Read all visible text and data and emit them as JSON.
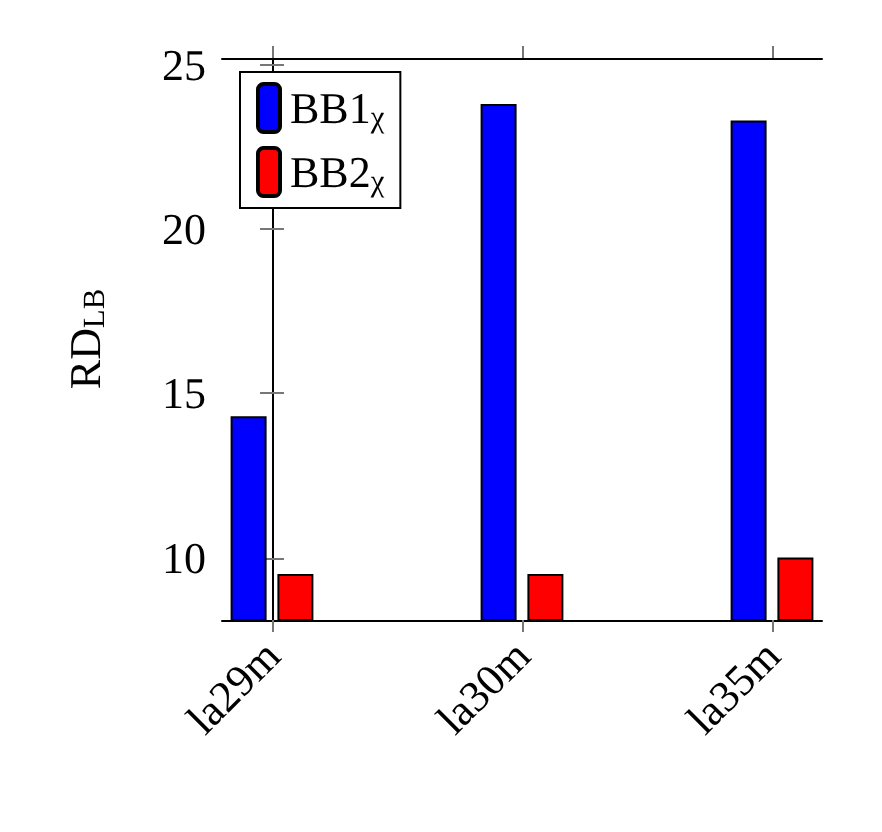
{
  "chart_data": {
    "type": "bar",
    "ylabel": "RD$_{LB}$",
    "categories": [
      "la29m",
      "la30m",
      "la35m"
    ],
    "series": [
      {
        "name": "BB1$_{χ}$",
        "color": "#0000ff",
        "values": [
          14.3,
          23.8,
          23.3
        ]
      },
      {
        "name": "BB2$_{χ}$",
        "color": "#ff0000",
        "values": [
          9.5,
          9.5,
          10.0
        ]
      }
    ],
    "ylim": [
      8.1,
      25.2
    ],
    "yticks": [
      10,
      15,
      20,
      25
    ],
    "grid": false,
    "legend": "top left"
  }
}
